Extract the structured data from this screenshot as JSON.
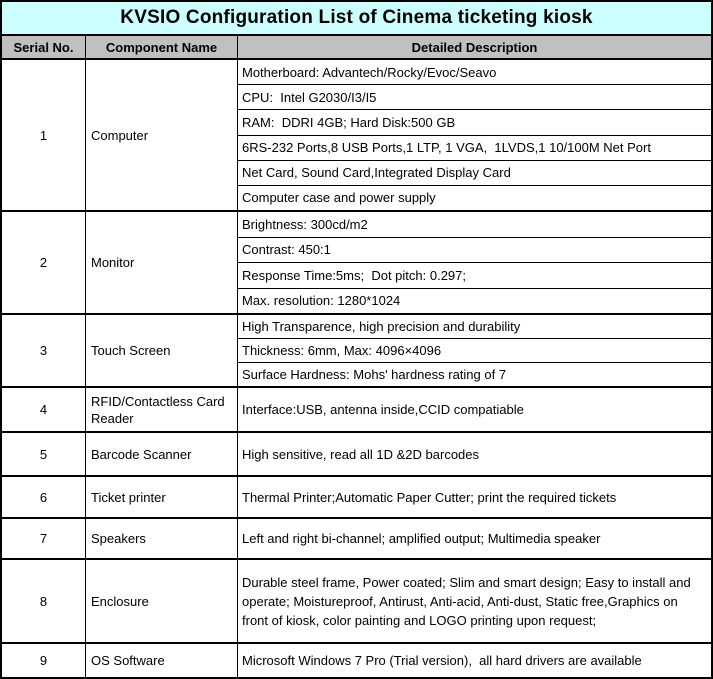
{
  "title": "KVSIO Configuration List of Cinema ticketing kiosk",
  "colors": {
    "title_background": "#CCFFFF",
    "header_background": "#C0C0C0",
    "body_background": "#FFFFFF",
    "border": "#000000",
    "text": "#000000"
  },
  "table": {
    "headers": [
      "Serial No.",
      "Component Name",
      "Detailed Description"
    ],
    "rows": [
      {
        "serial": "1",
        "component": "Computer",
        "descriptions": [
          "Motherboard: Advantech/Rocky/Evoc/Seavo",
          "CPU:  Intel G2030/I3/I5",
          "RAM:  DDRI 4GB; Hard Disk:500 GB",
          "6RS-232 Ports,8 USB Ports,1 LTP, 1 VGA,  1LVDS,1 10/100M Net Port",
          "Net Card, Sound Card,Integrated Display Card",
          "Computer case and power supply"
        ]
      },
      {
        "serial": "2",
        "component": "Monitor",
        "descriptions": [
          "Brightness: 300cd/m2",
          "Contrast: 450:1",
          "Response Time:5ms;  Dot pitch: 0.297;",
          "Max. resolution: 1280*1024"
        ]
      },
      {
        "serial": "3",
        "component": "Touch Screen",
        "descriptions": [
          "High Transparence, high precision and durability",
          "Thickness: 6mm, Max: 4096×4096",
          "Surface Hardness: Mohs' hardness rating of 7"
        ]
      },
      {
        "serial": "4",
        "component": "RFID/Contactless Card Reader",
        "descriptions": [
          "Interface:USB, antenna inside,CCID compatiable"
        ]
      },
      {
        "serial": "5",
        "component": "Barcode Scanner",
        "descriptions": [
          "High sensitive, read all 1D &2D barcodes"
        ]
      },
      {
        "serial": "6",
        "component": "Ticket printer",
        "descriptions": [
          "Thermal Printer;Automatic Paper Cutter; print the required tickets"
        ]
      },
      {
        "serial": "7",
        "component": "Speakers",
        "descriptions": [
          "Left and right bi-channel; amplified output; Multimedia speaker"
        ]
      },
      {
        "serial": "8",
        "component": "Enclosure",
        "descriptions": [
          "Durable steel frame, Power coated; Slim and smart design; Easy to install and operate; Moistureproof, Antirust, Anti-acid, Anti-dust, Static free,Graphics on front of kiosk, color painting and LOGO printing upon request;"
        ]
      },
      {
        "serial": "9",
        "component": "OS Software",
        "descriptions": [
          "Microsoft Windows 7 Pro (Trial version),  all hard drivers are available"
        ]
      }
    ]
  }
}
